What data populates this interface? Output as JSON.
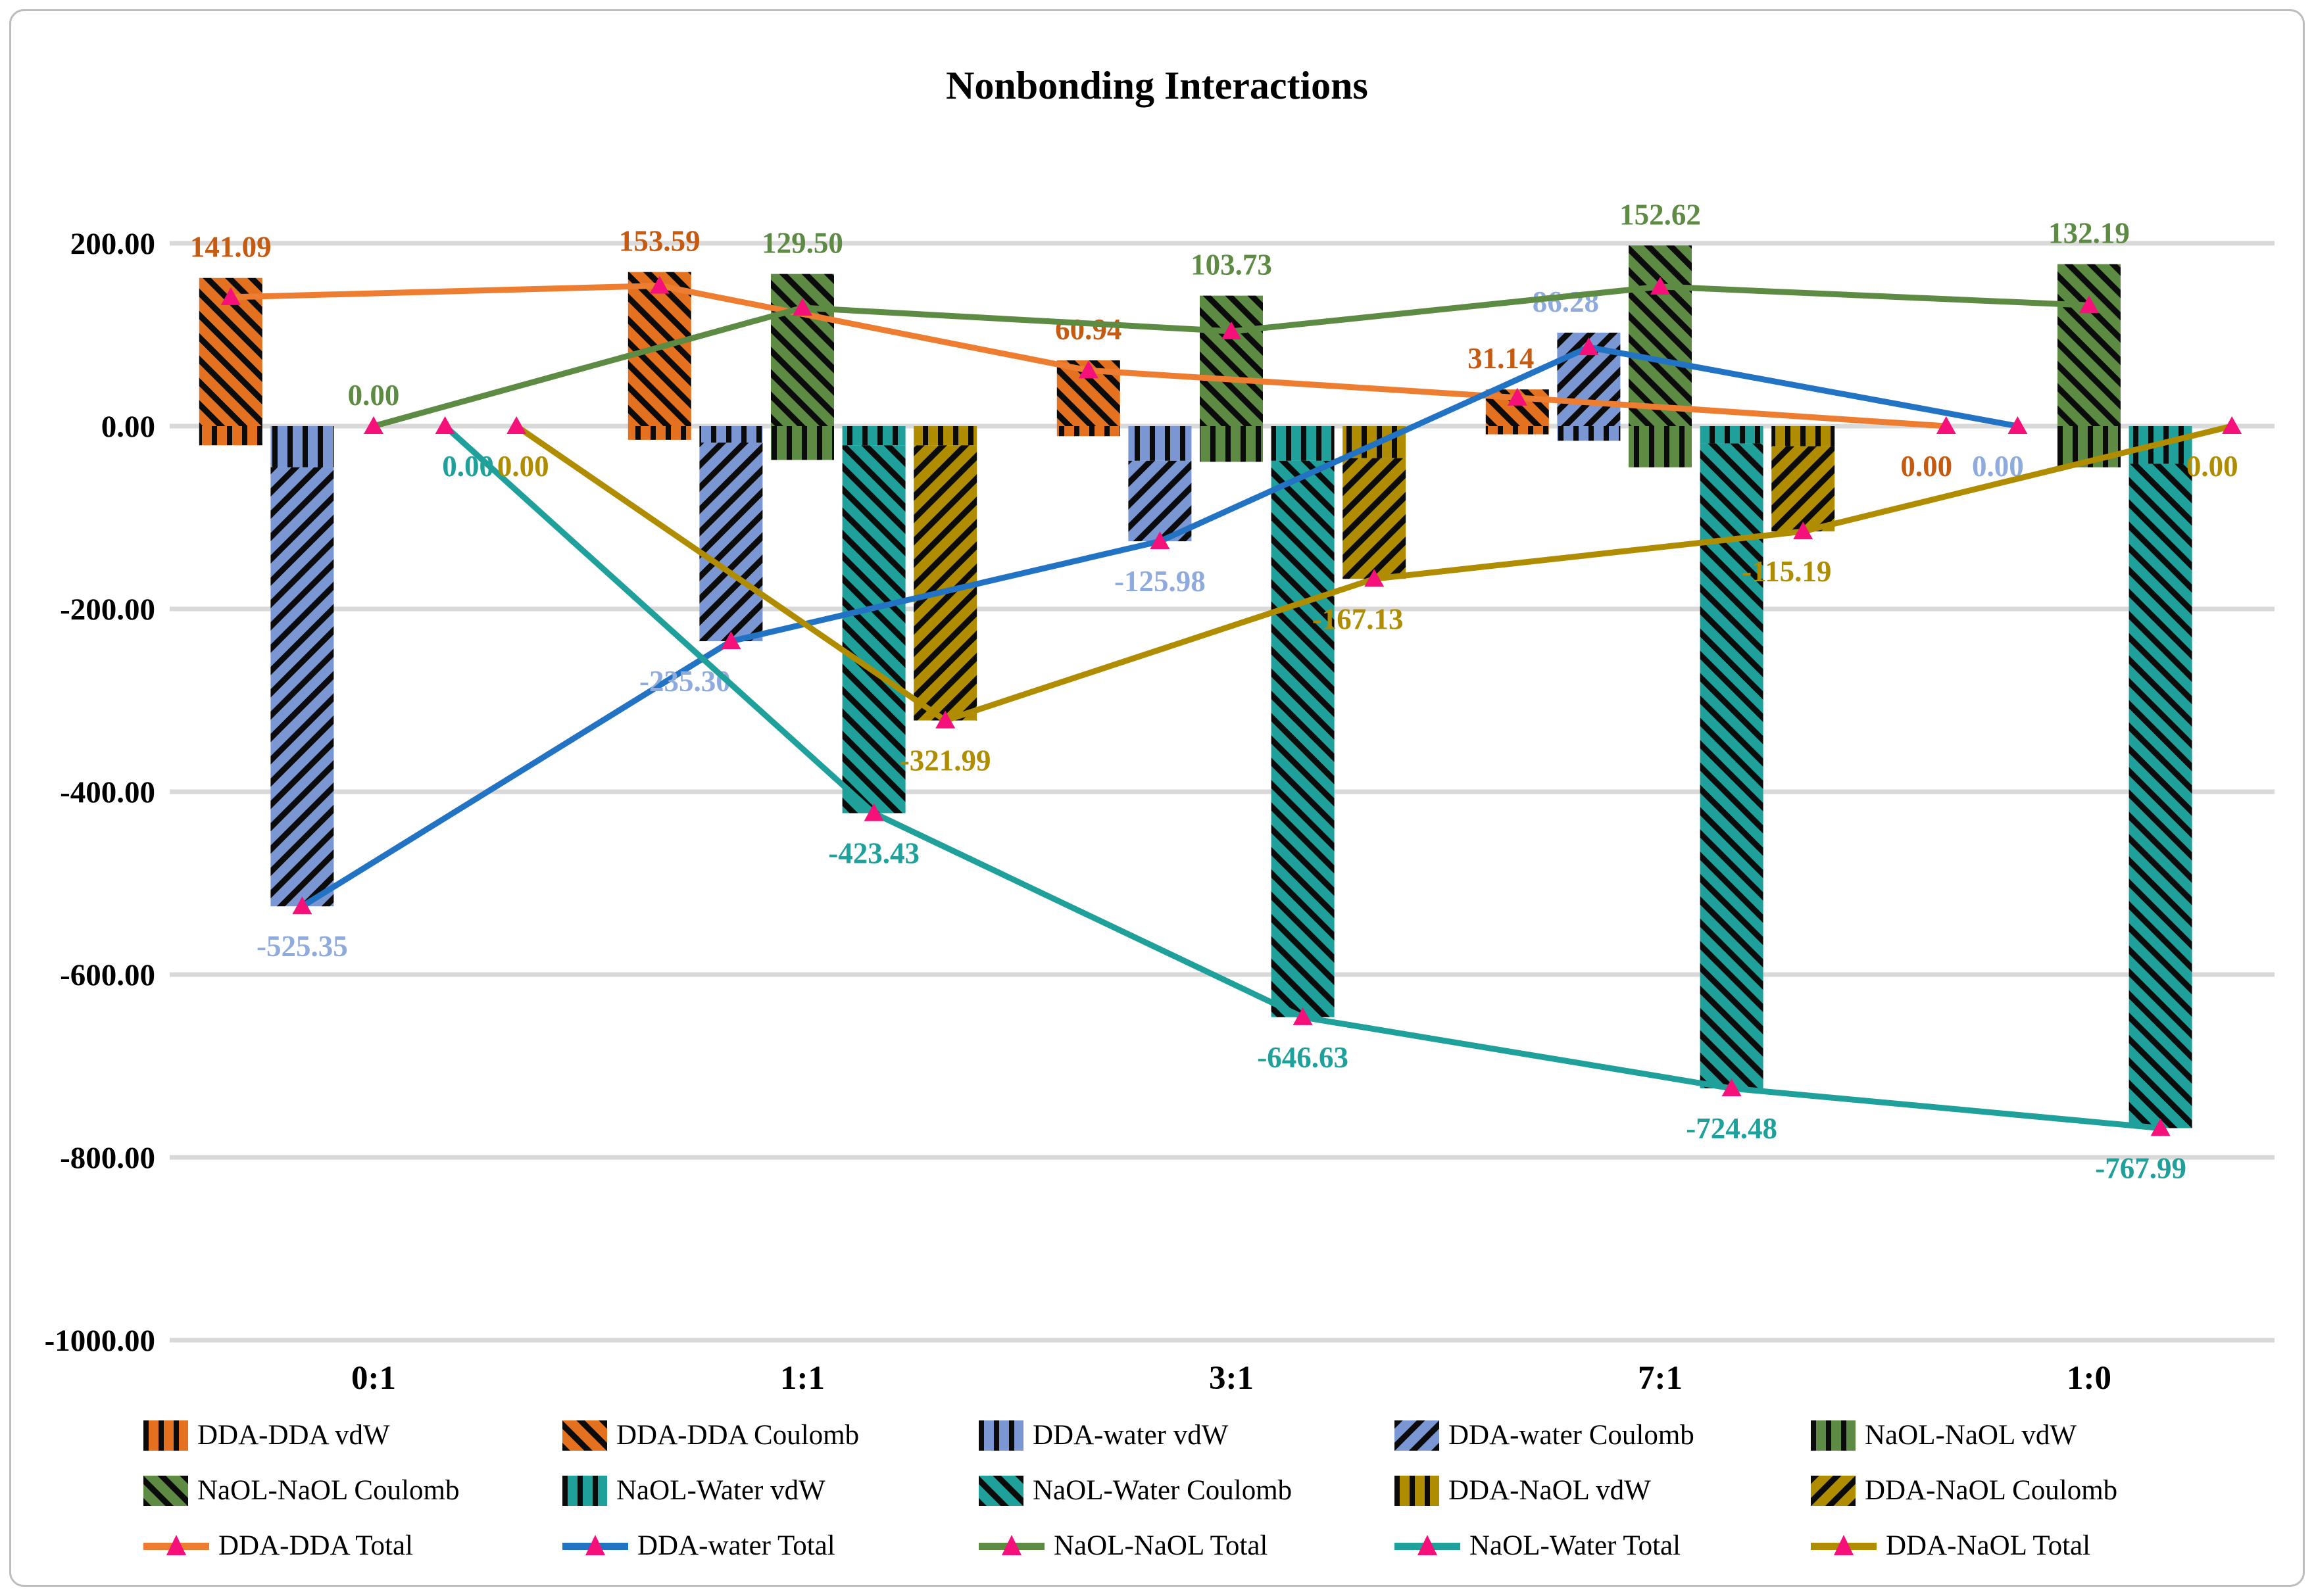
{
  "chart_data": {
    "type": "bar",
    "subtype": "stacked-bar-with-total-lines",
    "title": "Nonbonding Interactions",
    "categories": [
      "0:1",
      "1:1",
      "3:1",
      "7:1",
      "1:0"
    ],
    "ylim": [
      -1000,
      200
    ],
    "yticks": [
      200,
      0,
      -200,
      -400,
      -600,
      -800,
      -1000
    ],
    "ytick_labels": [
      "200.00",
      "0.00",
      "-200.00",
      "-400.00",
      "-600.00",
      "-800.00",
      "-1000.00"
    ],
    "grid": true,
    "gridline_color": "#D9D9D9",
    "legend_position": "bottom",
    "marker": "triangle-up",
    "marker_color": "#F5107A",
    "bar_series": [
      {
        "name": "DDA-DDA vdW",
        "slot": 0,
        "color": "#E4711F",
        "pattern": "vertical",
        "values": [
          -21,
          -15,
          -11,
          -9,
          0
        ]
      },
      {
        "name": "DDA-DDA Coulomb",
        "slot": 0,
        "color": "#E4711F",
        "pattern": "diagonal-down",
        "values": [
          162.09,
          168.59,
          71.94,
          40.14,
          0
        ]
      },
      {
        "name": "DDA-water vdW",
        "slot": 1,
        "color": "#7B97D3",
        "pattern": "vertical",
        "values": [
          -45,
          -18,
          -38,
          -16,
          0
        ]
      },
      {
        "name": "DDA-water Coulomb",
        "slot": 1,
        "color": "#7B97D3",
        "pattern": "diagonal-up",
        "values": [
          -480.35,
          -217.3,
          -87.98,
          102.28,
          0
        ]
      },
      {
        "name": "NaOL-NaOL vdW",
        "slot": 2,
        "color": "#5E8B43",
        "pattern": "vertical",
        "values": [
          0,
          -37,
          -39,
          -45,
          -45
        ]
      },
      {
        "name": "NaOL-NaOL Coulomb",
        "slot": 2,
        "color": "#5E8B43",
        "pattern": "diagonal-down",
        "values": [
          0,
          166.5,
          142.73,
          197.62,
          177.19
        ]
      },
      {
        "name": "NaOL-Water vdW",
        "slot": 3,
        "color": "#20A09A",
        "pattern": "vertical",
        "values": [
          0,
          -21,
          -38,
          -19,
          -41
        ]
      },
      {
        "name": "NaOL-Water Coulomb",
        "slot": 3,
        "color": "#20A09A",
        "pattern": "diagonal-down",
        "values": [
          0,
          -402.43,
          -608.63,
          -705.48,
          -726.99
        ]
      },
      {
        "name": "DDA-NaOL vdW",
        "slot": 4,
        "color": "#AF8C00",
        "pattern": "vertical",
        "values": [
          0,
          -21,
          -35,
          -22,
          0
        ]
      },
      {
        "name": "DDA-NaOL Coulomb",
        "slot": 4,
        "color": "#AF8C00",
        "pattern": "diagonal-up",
        "values": [
          0,
          -300.99,
          -132.13,
          -93.19,
          0
        ]
      }
    ],
    "line_series": [
      {
        "name": "DDA-DDA Total",
        "slot": 0,
        "color": "#ED7D31",
        "label_color": "#C55A11",
        "values": [
          141.09,
          153.59,
          60.94,
          31.14,
          0.0
        ]
      },
      {
        "name": "DDA-water Total",
        "slot": 1,
        "color": "#2273C3",
        "label_color": "#8FAADC",
        "values": [
          -525.35,
          -235.3,
          -125.98,
          86.28,
          0.0
        ]
      },
      {
        "name": "NaOL-NaOL Total",
        "slot": 2,
        "color": "#5E8B43",
        "label_color": "#5E8B43",
        "values": [
          0.0,
          129.5,
          103.73,
          152.62,
          132.19
        ]
      },
      {
        "name": "NaOL-Water Total",
        "slot": 3,
        "color": "#1FA09A",
        "label_color": "#1FA09A",
        "values": [
          0.0,
          -423.43,
          -646.63,
          -724.48,
          -767.99
        ]
      },
      {
        "name": "DDA-NaOL Total",
        "slot": 4,
        "color": "#AF8C00",
        "label_color": "#AF8C00",
        "values": [
          0.0,
          -321.99,
          -167.13,
          -115.19,
          0.0
        ]
      }
    ]
  }
}
